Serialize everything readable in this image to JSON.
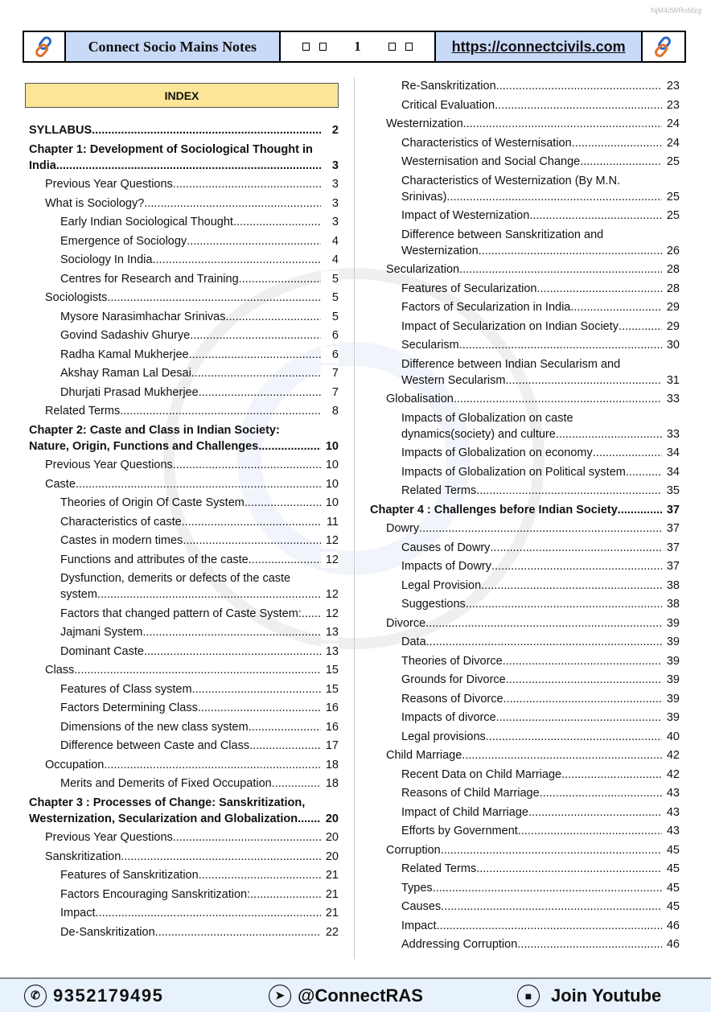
{
  "doc_id": "NjM4dWRoMzg",
  "header": {
    "title": "Connect Socio Mains Notes",
    "page": "1",
    "url": "https://connectcivils.com",
    "logo_icon": "chain-link-icon"
  },
  "index_title": "INDEX",
  "left": [
    {
      "level": 0,
      "text": "SYLLABUS",
      "page": "2"
    },
    {
      "level": 0,
      "text": "Chapter 1: Development of Sociological Thought in India",
      "page": "3"
    },
    {
      "level": 1,
      "text": "Previous Year Questions",
      "page": "3"
    },
    {
      "level": 1,
      "text": "What is Sociology?",
      "page": "3"
    },
    {
      "level": 2,
      "text": "Early Indian Sociological Thought",
      "page": "3"
    },
    {
      "level": 2,
      "text": "Emergence of Sociology",
      "page": "4"
    },
    {
      "level": 2,
      "text": "Sociology In India",
      "page": "4"
    },
    {
      "level": 2,
      "text": "Centres for Research and Training",
      "page": "5"
    },
    {
      "level": 1,
      "text": "Sociologists",
      "page": "5"
    },
    {
      "level": 2,
      "text": "Mysore Narasimhachar Srinivas",
      "page": "5"
    },
    {
      "level": 2,
      "text": "Govind Sadashiv Ghurye",
      "page": "6"
    },
    {
      "level": 2,
      "text": "Radha Kamal Mukherjee",
      "page": "6"
    },
    {
      "level": 2,
      "text": "Akshay Raman Lal Desai",
      "page": "7"
    },
    {
      "level": 2,
      "text": "Dhurjati Prasad Mukherjee",
      "page": "7"
    },
    {
      "level": 1,
      "text": "Related Terms",
      "page": "8"
    },
    {
      "level": 0,
      "text": "Chapter 2: Caste and Class in Indian Society: Nature, Origin, Functions and Challenges",
      "page": "10"
    },
    {
      "level": 1,
      "text": "Previous Year Questions",
      "page": "10"
    },
    {
      "level": 1,
      "text": "Caste",
      "page": "10"
    },
    {
      "level": 2,
      "text": "Theories of Origin Of Caste System",
      "page": "10"
    },
    {
      "level": 2,
      "text": "Characteristics of caste",
      "page": "11"
    },
    {
      "level": 2,
      "text": "Castes in modern times",
      "page": "12"
    },
    {
      "level": 2,
      "text": "Functions and attributes of the caste",
      "page": "12"
    },
    {
      "level": 2,
      "text": "Dysfunction, demerits or defects of the caste system",
      "page": "12"
    },
    {
      "level": 2,
      "text": "Factors that changed pattern of Caste System:",
      "page": "12"
    },
    {
      "level": 2,
      "text": "Jajmani System",
      "page": "13"
    },
    {
      "level": 2,
      "text": "Dominant Caste",
      "page": "13"
    },
    {
      "level": 1,
      "text": "Class",
      "page": "15"
    },
    {
      "level": 2,
      "text": "Features of Class system",
      "page": "15"
    },
    {
      "level": 2,
      "text": "Factors Determining Class",
      "page": "16"
    },
    {
      "level": 2,
      "text": "Dimensions of the new class system",
      "page": "16"
    },
    {
      "level": 2,
      "text": "Difference between Caste and Class",
      "page": "17"
    },
    {
      "level": 1,
      "text": "Occupation",
      "page": "18"
    },
    {
      "level": 2,
      "text": "Merits and Demerits of Fixed Occupation",
      "page": "18"
    },
    {
      "level": 0,
      "text": "Chapter 3 : Processes of Change: Sanskritization, Westernization, Secularization and Globalization.",
      "page": "20"
    },
    {
      "level": 1,
      "text": "Previous Year Questions",
      "page": "20"
    },
    {
      "level": 1,
      "text": "Sanskritization",
      "page": "20"
    },
    {
      "level": 2,
      "text": "Features of Sanskritization",
      "page": "21"
    },
    {
      "level": 2,
      "text": "Factors Encouraging Sanskritization:",
      "page": "21"
    },
    {
      "level": 2,
      "text": "Impact",
      "page": "21"
    },
    {
      "level": 2,
      "text": "De-Sanskritization",
      "page": "22"
    }
  ],
  "right": [
    {
      "level": 2,
      "text": "Re-Sanskritization",
      "page": "23"
    },
    {
      "level": 2,
      "text": "Critical Evaluation",
      "page": "23"
    },
    {
      "level": 1,
      "text": "Westernization",
      "page": "24"
    },
    {
      "level": 2,
      "text": "Characteristics of Westernisation",
      "page": "24"
    },
    {
      "level": 2,
      "text": "Westernisation and Social Change",
      "page": "25"
    },
    {
      "level": 2,
      "text": "Characteristics of Westernization (By M.N. Srinivas)",
      "page": "25"
    },
    {
      "level": 2,
      "text": "Impact of Westernization",
      "page": "25"
    },
    {
      "level": 2,
      "text": "Difference between Sanskritization and Westernization",
      "page": "26"
    },
    {
      "level": 1,
      "text": "Secularization",
      "page": "28"
    },
    {
      "level": 2,
      "text": "Features of Secularization",
      "page": "28"
    },
    {
      "level": 2,
      "text": "Factors of Secularization in India",
      "page": "29"
    },
    {
      "level": 2,
      "text": "Impact of Secularization on Indian Society",
      "page": "29"
    },
    {
      "level": 2,
      "text": "Secularism",
      "page": "30"
    },
    {
      "level": 2,
      "text": "Difference between Indian Secularism and Western Secularism",
      "page": "31"
    },
    {
      "level": 1,
      "text": "Globalisation",
      "page": "33"
    },
    {
      "level": 2,
      "text": "Impacts of Globalization on caste dynamics(society) and culture",
      "page": "33"
    },
    {
      "level": 2,
      "text": "Impacts of Globalization on economy",
      "page": "34"
    },
    {
      "level": 2,
      "text": "Impacts of Globalization on Political system",
      "page": "34"
    },
    {
      "level": 2,
      "text": "Related Terms",
      "page": "35"
    },
    {
      "level": 0,
      "text": "Chapter 4 : Challenges before Indian Society",
      "page": "37"
    },
    {
      "level": 1,
      "text": "Dowry",
      "page": "37"
    },
    {
      "level": 2,
      "text": "Causes of Dowry",
      "page": "37"
    },
    {
      "level": 2,
      "text": "Impacts of Dowry",
      "page": "37"
    },
    {
      "level": 2,
      "text": "Legal  Provision",
      "page": "38"
    },
    {
      "level": 2,
      "text": "Suggestions",
      "page": "38"
    },
    {
      "level": 1,
      "text": "Divorce",
      "page": "39"
    },
    {
      "level": 2,
      "text": "Data",
      "page": "39"
    },
    {
      "level": 2,
      "text": "Theories of Divorce",
      "page": "39"
    },
    {
      "level": 2,
      "text": "Grounds for Divorce",
      "page": "39"
    },
    {
      "level": 2,
      "text": "Reasons of Divorce",
      "page": "39"
    },
    {
      "level": 2,
      "text": "Impacts of divorce",
      "page": "39"
    },
    {
      "level": 2,
      "text": "Legal provisions",
      "page": "40"
    },
    {
      "level": 1,
      "text": "Child Marriage",
      "page": "42"
    },
    {
      "level": 2,
      "text": "Recent Data on Child Marriage",
      "page": "42"
    },
    {
      "level": 2,
      "text": "Reasons of Child Marriage",
      "page": "43"
    },
    {
      "level": 2,
      "text": "Impact of Child Marriage",
      "page": "43"
    },
    {
      "level": 2,
      "text": "Efforts by Government",
      "page": "43"
    },
    {
      "level": 1,
      "text": "Corruption",
      "page": "45"
    },
    {
      "level": 2,
      "text": "Related Terms",
      "page": "45"
    },
    {
      "level": 2,
      "text": "Types",
      "page": "45"
    },
    {
      "level": 2,
      "text": "Causes",
      "page": "45"
    },
    {
      "level": 2,
      "text": "Impact",
      "page": "46"
    },
    {
      "level": 2,
      "text": "Addressing Corruption",
      "page": "46"
    }
  ],
  "footer": {
    "phone": "9352179495",
    "telegram": "@ConnectRAS",
    "youtube": "Join Youtube"
  },
  "colors": {
    "header_blue": "#c9daf8",
    "index_yellow": "#fde597",
    "footer_bg": "#e8f2fc"
  }
}
